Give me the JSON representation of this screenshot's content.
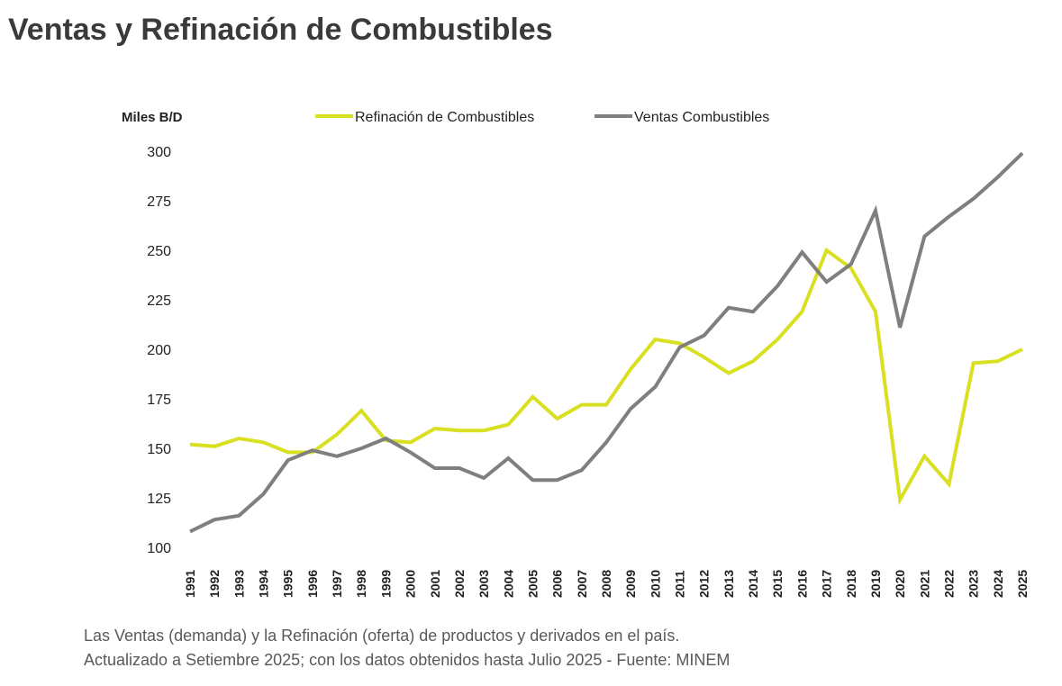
{
  "title": "Ventas y Refinación de Combustibles",
  "chart_data": {
    "type": "line",
    "title": "Ventas y Refinación de Combustibles",
    "ylabel": "Miles B/D",
    "xlabel": "",
    "ylim": [
      100,
      300
    ],
    "yticks": [
      100,
      125,
      150,
      175,
      200,
      225,
      250,
      275,
      300
    ],
    "grid": false,
    "legend_position": "top",
    "x": [
      "1991",
      "1992",
      "1993",
      "1994",
      "1995",
      "1996",
      "1997",
      "1998",
      "1999",
      "2000",
      "2001",
      "2002",
      "2003",
      "2004",
      "2005",
      "2006",
      "2007",
      "2008",
      "2009",
      "2010",
      "2011",
      "2012",
      "2013",
      "2014",
      "2015",
      "2016",
      "2017",
      "2018",
      "2019",
      "2020",
      "2021",
      "2022",
      "2023",
      "2024",
      "2025"
    ],
    "series": [
      {
        "name": "Refinación de Combustibles",
        "color": "#d9e021",
        "values": [
          152,
          151,
          155,
          153,
          148,
          148,
          157,
          169,
          154,
          153,
          160,
          159,
          159,
          162,
          176,
          165,
          172,
          172,
          190,
          205,
          203,
          196,
          188,
          194,
          205,
          219,
          250,
          241,
          219,
          124,
          146,
          132,
          193,
          194,
          200
        ]
      },
      {
        "name": "Ventas Combustibles",
        "color": "#7f7f7f",
        "values": [
          108,
          114,
          116,
          127,
          144,
          149,
          146,
          150,
          155,
          148,
          140,
          140,
          135,
          145,
          134,
          134,
          139,
          153,
          170,
          181,
          201,
          207,
          221,
          219,
          232,
          249,
          234,
          243,
          270,
          211,
          257,
          267,
          276,
          287,
          299
        ]
      }
    ]
  },
  "caption": {
    "line1": "Las Ventas (demanda) y la Refinación (oferta) de productos y derivados en el país.",
    "line2": "Actualizado a Setiembre 2025; con los datos obtenidos hasta Julio 2025 - Fuente: MINEM"
  }
}
